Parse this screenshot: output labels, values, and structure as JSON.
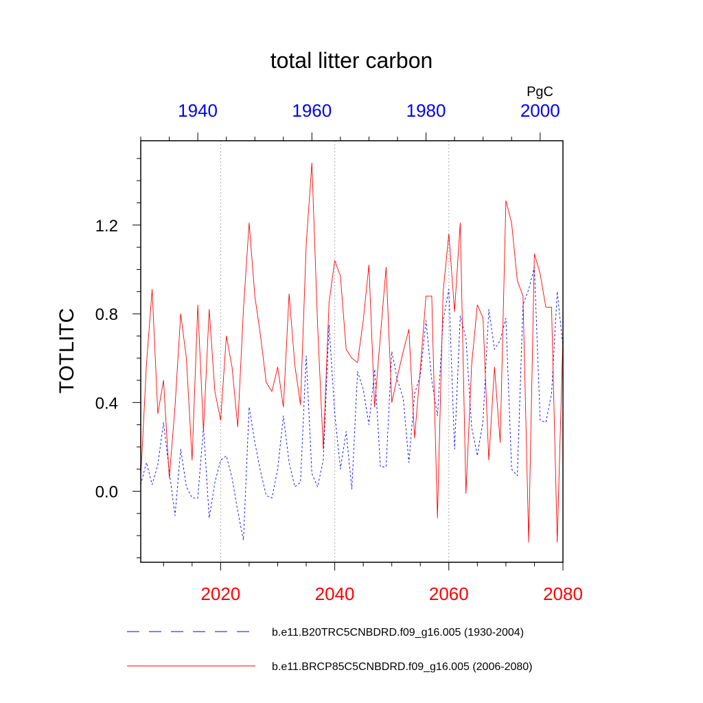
{
  "chart_data": {
    "type": "line",
    "title": "total litter carbon",
    "units": "PgC",
    "ylabel": "TOTLITC",
    "ylim": [
      -0.32,
      1.58
    ],
    "yticks": [
      0.0,
      0.4,
      0.8,
      1.2
    ],
    "ytick_labels": [
      "0.0",
      "0.4",
      "0.8",
      "1.2"
    ],
    "y_minor_step": 0.1,
    "bottom_axis": {
      "xlim": [
        2006,
        2080
      ],
      "ticks": [
        2020,
        2040,
        2060,
        2080
      ],
      "tick_labels": [
        "2020",
        "2040",
        "2060",
        "2080"
      ],
      "color": "#ff0000"
    },
    "top_axis": {
      "xlim": [
        1930,
        2004
      ],
      "ticks": [
        1940,
        1960,
        1980,
        2000
      ],
      "tick_labels": [
        "1940",
        "1960",
        "1980",
        "2000"
      ],
      "color": "#0000ff"
    },
    "vertical_gridlines": [
      2020,
      2040,
      2060
    ],
    "x_minor_step": 5,
    "series": [
      {
        "name": "b.e11.B20TRC5CNBDRD.f09_g16.005 (1930-2004)",
        "axis": "top",
        "color": "#0000ff",
        "dash": "dashed",
        "x_start": 1930,
        "values": [
          0.03,
          0.13,
          0.03,
          0.12,
          0.31,
          0.09,
          -0.11,
          0.19,
          0.02,
          -0.03,
          -0.03,
          0.29,
          -0.12,
          0.04,
          0.14,
          0.16,
          0.06,
          -0.09,
          -0.22,
          0.38,
          0.22,
          0.09,
          -0.02,
          -0.03,
          0.1,
          0.34,
          0.13,
          0.02,
          0.04,
          0.61,
          0.08,
          0.02,
          0.14,
          0.75,
          0.35,
          0.1,
          0.27,
          0.01,
          0.54,
          0.46,
          0.3,
          0.55,
          0.11,
          0.11,
          0.63,
          0.5,
          0.42,
          0.13,
          0.44,
          0.52,
          0.77,
          0.5,
          0.34,
          0.77,
          0.91,
          0.19,
          0.79,
          0.69,
          0.29,
          0.16,
          0.32,
          0.82,
          0.64,
          0.68,
          0.78,
          0.1,
          0.07,
          0.84,
          0.91,
          1.01,
          0.32,
          0.31,
          0.44,
          0.9,
          0.65
        ]
      },
      {
        "name": "b.e11.BRCP85C5CNBDRD.f09_g16.005 (2006-2080)",
        "axis": "bottom",
        "color": "#ff0000",
        "dash": "solid",
        "x_start": 2006,
        "values": [
          0.06,
          0.57,
          0.91,
          0.35,
          0.5,
          0.06,
          0.38,
          0.8,
          0.6,
          0.14,
          0.84,
          0.27,
          0.82,
          0.45,
          0.32,
          0.7,
          0.56,
          0.29,
          0.82,
          1.21,
          0.88,
          0.7,
          0.49,
          0.45,
          0.56,
          0.38,
          0.89,
          0.57,
          0.39,
          1.11,
          1.48,
          0.75,
          0.19,
          0.85,
          1.04,
          0.97,
          0.64,
          0.6,
          0.58,
          0.77,
          1.02,
          0.38,
          0.7,
          1.01,
          0.4,
          0.52,
          0.63,
          0.73,
          0.24,
          0.55,
          0.88,
          0.88,
          -0.12,
          0.9,
          1.16,
          0.81,
          1.21,
          -0.01,
          0.57,
          0.84,
          0.78,
          0.14,
          0.56,
          0.22,
          1.31,
          1.21,
          0.95,
          0.88,
          -0.23,
          1.07,
          0.98,
          0.83,
          0.83,
          -0.23,
          0.7
        ]
      }
    ]
  }
}
